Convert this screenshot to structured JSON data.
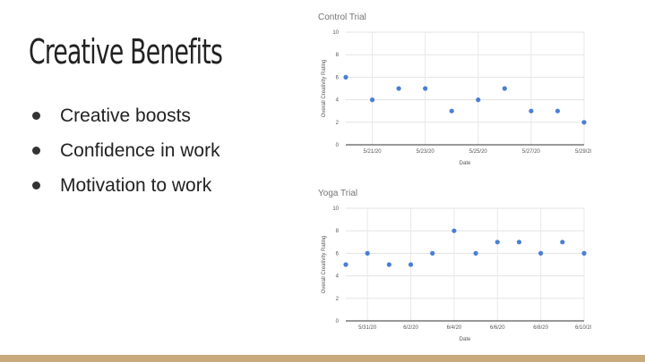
{
  "slide": {
    "title": "Creative Benefits",
    "bullets": [
      "Creative boosts",
      "Confidence in work",
      "Motivation to work"
    ]
  },
  "colors": {
    "point": "#4a7fd4",
    "footer_bar": "#c8aa7c"
  },
  "chart_data": [
    {
      "type": "scatter",
      "title": "Control Trial",
      "xlabel": "Date",
      "ylabel": "Overall Creativity Rating",
      "ylim": [
        0,
        10
      ],
      "yticks": [
        0,
        2,
        4,
        6,
        8,
        10
      ],
      "xlim": [
        "5/20/20",
        "5/29/20"
      ],
      "xticks": [
        "5/21/20",
        "5/23/20",
        "5/25/20",
        "5/27/20",
        "5/29/20"
      ],
      "grid": true,
      "points": [
        {
          "x": "5/20/20",
          "y": 6
        },
        {
          "x": "5/21/20",
          "y": 4
        },
        {
          "x": "5/22/20",
          "y": 5
        },
        {
          "x": "5/23/20",
          "y": 5
        },
        {
          "x": "5/24/20",
          "y": 3
        },
        {
          "x": "5/25/20",
          "y": 4
        },
        {
          "x": "5/26/20",
          "y": 5
        },
        {
          "x": "5/27/20",
          "y": 3
        },
        {
          "x": "5/28/20",
          "y": 3
        },
        {
          "x": "5/29/20",
          "y": 2
        }
      ]
    },
    {
      "type": "scatter",
      "title": "Yoga Trial",
      "xlabel": "Date",
      "ylabel": "Overall Creativity Rating",
      "ylim": [
        0,
        10
      ],
      "yticks": [
        0,
        2,
        4,
        6,
        8,
        10
      ],
      "xlim": [
        "5/30/20",
        "6/10/20"
      ],
      "xticks": [
        "5/31/20",
        "6/2/20",
        "6/4/20",
        "6/6/20",
        "6/8/20",
        "6/10/20"
      ],
      "grid": true,
      "points": [
        {
          "x": "5/30/20",
          "y": 5
        },
        {
          "x": "5/31/20",
          "y": 6
        },
        {
          "x": "6/1/20",
          "y": 5
        },
        {
          "x": "6/2/20",
          "y": 5
        },
        {
          "x": "6/3/20",
          "y": 6
        },
        {
          "x": "6/4/20",
          "y": 8
        },
        {
          "x": "6/5/20",
          "y": 6
        },
        {
          "x": "6/6/20",
          "y": 7
        },
        {
          "x": "6/7/20",
          "y": 7
        },
        {
          "x": "6/8/20",
          "y": 6
        },
        {
          "x": "6/9/20",
          "y": 7
        },
        {
          "x": "6/10/20",
          "y": 6
        }
      ]
    }
  ]
}
